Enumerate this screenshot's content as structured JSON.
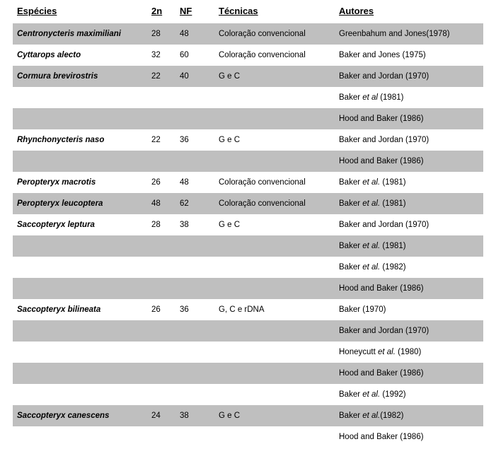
{
  "headers": {
    "especies": "Espécies",
    "dn": "2n",
    "nf": "NF",
    "tecnicas": "Técnicas",
    "autores": "Autores"
  },
  "rows": [
    {
      "shaded": true,
      "species": "Centronycteris maximiliani",
      "dn": "28",
      "nf": "48",
      "tecnica": "Coloração convencional",
      "autor_pre": "Greenbahum and Jones(1978)",
      "autor_it": "",
      "autor_post": ""
    },
    {
      "shaded": false,
      "species": "Cyttarops alecto",
      "dn": "32",
      "nf": "60",
      "tecnica": "Coloração convencional",
      "autor_pre": "Baker and Jones (1975)",
      "autor_it": "",
      "autor_post": ""
    },
    {
      "shaded": true,
      "species": "Cormura brevirostris",
      "dn": "22",
      "nf": "40",
      "tecnica": "G e C",
      "autor_pre": "Baker and Jordan (1970)",
      "autor_it": "",
      "autor_post": ""
    },
    {
      "shaded": false,
      "species": "",
      "dn": "",
      "nf": "",
      "tecnica": "",
      "autor_pre": "Baker ",
      "autor_it": "et  al",
      "autor_post": " (1981)"
    },
    {
      "shaded": true,
      "species": "",
      "dn": "",
      "nf": "",
      "tecnica": "",
      "autor_pre": "Hood and Baker (1986)",
      "autor_it": "",
      "autor_post": ""
    },
    {
      "shaded": false,
      "species": "Rhynchonycteris naso",
      "dn": "22",
      "nf": "36",
      "tecnica": "G e C",
      "autor_pre": "Baker and Jordan (1970)",
      "autor_it": "",
      "autor_post": ""
    },
    {
      "shaded": true,
      "species": "",
      "dn": "",
      "nf": "",
      "tecnica": "",
      "autor_pre": "Hood and Baker (1986)",
      "autor_it": "",
      "autor_post": ""
    },
    {
      "shaded": false,
      "species": "Peropteryx macrotis",
      "dn": "26",
      "nf": "48",
      "tecnica": "Coloração convencional",
      "autor_pre": "Baker ",
      "autor_it": "et al.",
      "autor_post": " (1981)"
    },
    {
      "shaded": true,
      "species": "Peropteryx leucoptera",
      "dn": "48",
      "nf": "62",
      "tecnica": "Coloração convencional",
      "autor_pre": "Baker ",
      "autor_it": "et al.",
      "autor_post": " (1981)"
    },
    {
      "shaded": false,
      "species": "Saccopteryx leptura",
      "dn": "28",
      "nf": "38",
      "tecnica": "G e C",
      "autor_pre": "Baker and Jordan (1970)",
      "autor_it": "",
      "autor_post": ""
    },
    {
      "shaded": true,
      "species": "",
      "dn": "",
      "nf": "",
      "tecnica": "",
      "autor_pre": "Baker ",
      "autor_it": "et al.",
      "autor_post": " (1981)"
    },
    {
      "shaded": false,
      "species": "",
      "dn": "",
      "nf": "",
      "tecnica": "",
      "autor_pre": "Baker ",
      "autor_it": "et al.",
      "autor_post": " (1982)"
    },
    {
      "shaded": true,
      "species": "",
      "dn": "",
      "nf": "",
      "tecnica": "",
      "autor_pre": "Hood and Baker (1986)",
      "autor_it": "",
      "autor_post": ""
    },
    {
      "shaded": false,
      "species": "Saccopteryx bilineata",
      "dn": "26",
      "nf": "36",
      "tecnica": "G, C e rDNA",
      "autor_pre": "Baker (1970)",
      "autor_it": "",
      "autor_post": ""
    },
    {
      "shaded": true,
      "species": "",
      "dn": "",
      "nf": "",
      "tecnica": "",
      "autor_pre": "Baker and Jordan (1970)",
      "autor_it": "",
      "autor_post": ""
    },
    {
      "shaded": false,
      "species": "",
      "dn": "",
      "nf": "",
      "tecnica": "",
      "autor_pre": "Honeycutt ",
      "autor_it": "et al.",
      "autor_post": " (1980)"
    },
    {
      "shaded": true,
      "species": "",
      "dn": "",
      "nf": "",
      "tecnica": "",
      "autor_pre": "Hood and Baker  (1986)",
      "autor_it": "",
      "autor_post": ""
    },
    {
      "shaded": false,
      "species": "",
      "dn": "",
      "nf": "",
      "tecnica": "",
      "autor_pre": "Baker ",
      "autor_it": "et al.",
      "autor_post": " (1992)"
    },
    {
      "shaded": true,
      "species": "Saccopteryx canescens",
      "dn": "24",
      "nf": "38",
      "tecnica": "G e C",
      "autor_pre": "Baker ",
      "autor_it": "et al.",
      "autor_post": "(1982)"
    },
    {
      "shaded": false,
      "species": "",
      "dn": "",
      "nf": "",
      "tecnica": "",
      "autor_pre": "Hood and Baker (1986)",
      "autor_it": "",
      "autor_post": ""
    }
  ]
}
